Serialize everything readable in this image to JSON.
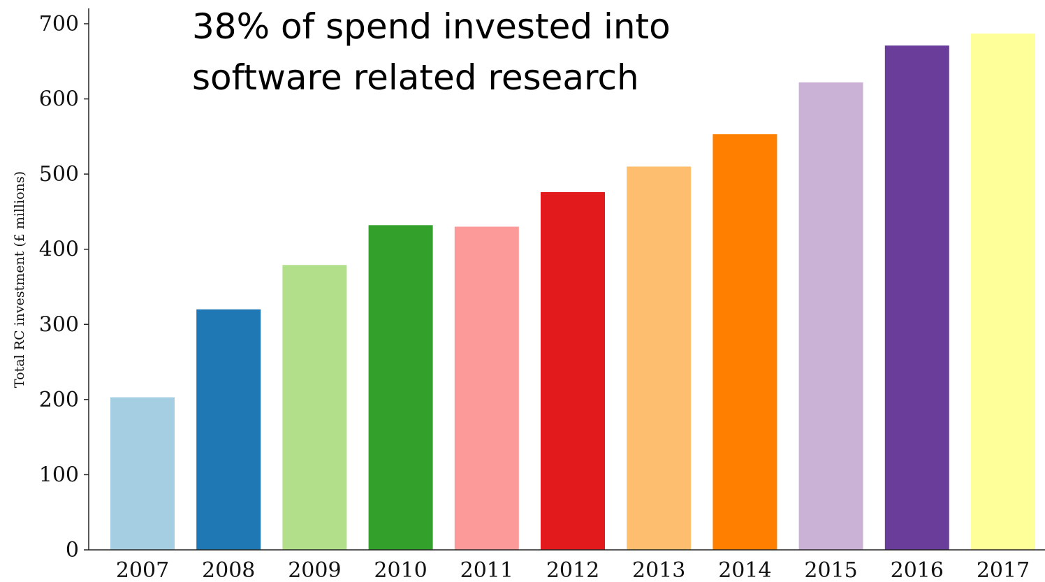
{
  "chart_data": {
    "type": "bar",
    "annotation": [
      "38% of spend invested into",
      "software related research"
    ],
    "y_label": "Total RC investment (£ millions)",
    "categories": [
      "2007",
      "2008",
      "2009",
      "2010",
      "2011",
      "2012",
      "2013",
      "2014",
      "2015",
      "2016",
      "2017"
    ],
    "values": [
      203,
      320,
      379,
      432,
      430,
      476,
      510,
      553,
      622,
      671,
      687
    ],
    "colors": [
      "#a6cee3",
      "#1f78b4",
      "#b2df8a",
      "#33a02c",
      "#fb9a99",
      "#e31a1c",
      "#fdbf6f",
      "#ff7f00",
      "#cab2d6",
      "#6a3d9a",
      "#ffff99"
    ],
    "ylim": [
      0,
      700
    ],
    "yticks": [
      0,
      100,
      200,
      300,
      400,
      500,
      600,
      700
    ],
    "grid": false
  }
}
